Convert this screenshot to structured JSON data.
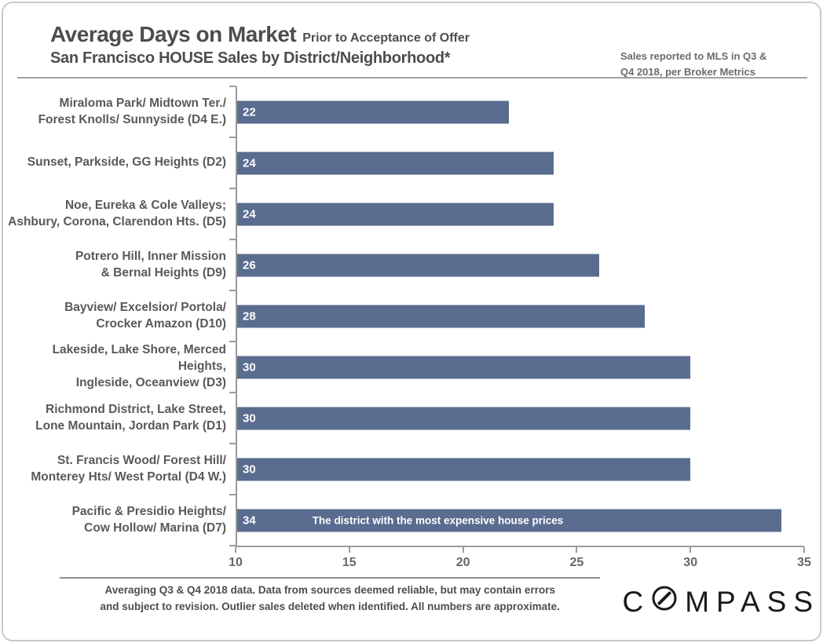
{
  "header": {
    "title": "Average Days on Market",
    "title_suffix": "Prior to Acceptance of Offer",
    "subtitle": "San Francisco HOUSE Sales by District/Neighborhood*",
    "note": "Sales reported to MLS in Q3 &\nQ4 2018, per Broker Metrics"
  },
  "chart_data": {
    "type": "bar",
    "orientation": "horizontal",
    "title": "Average Days on Market Prior to Acceptance of Offer — San Francisco HOUSE Sales by District/Neighborhood",
    "categories": [
      "Miraloma Park/ Midtown Ter./\nForest Knolls/ Sunnyside (D4 E.)",
      "Sunset, Parkside, GG Heights (D2)",
      "Noe, Eureka & Cole Valleys;\nAshbury, Corona, Clarendon Hts. (D5)",
      "Potrero Hill, Inner Mission\n& Bernal Heights (D9)",
      "Bayview/ Excelsior/ Portola/\nCrocker Amazon (D10)",
      "Lakeside, Lake Shore, Merced Heights,\nIngleside, Oceanview (D3)",
      "Richmond District, Lake Street,\nLone Mountain, Jordan Park (D1)",
      "St. Francis Wood/ Forest Hill/\nMonterey Hts/ West Portal (D4 W.)",
      "Pacific & Presidio Heights/\nCow Hollow/ Marina (D7)"
    ],
    "values": [
      22,
      24,
      24,
      26,
      28,
      30,
      30,
      30,
      34
    ],
    "annotation": {
      "bar_index": 8,
      "text": "The district with the most expensive house prices"
    },
    "xlim": [
      10,
      35
    ],
    "xticks": [
      10,
      15,
      20,
      25,
      30,
      35
    ],
    "xlabel": "",
    "ylabel": "",
    "grid": false,
    "legend": false,
    "bar_color": "#5a6c8f",
    "value_label_color": "#ffffff"
  },
  "footer": {
    "disclaimer": "Averaging Q3 & Q4 2018 data. Data from sources deemed reliable,  but may contain errors\nand subject to revision. Outlier sales deleted when identified. All numbers are approximate.",
    "logo_text_start": "C",
    "logo_text_end": "MPASS"
  }
}
